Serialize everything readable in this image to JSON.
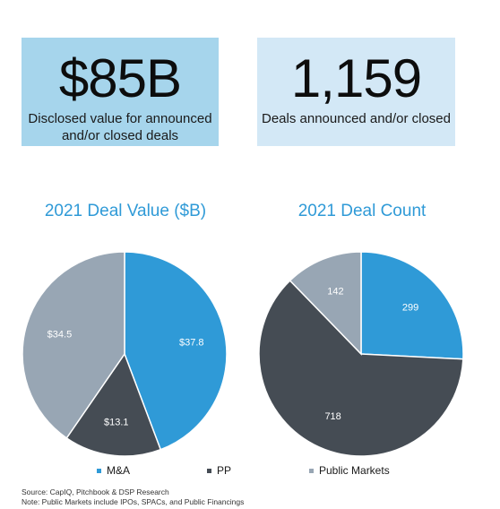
{
  "colors": {
    "ma": "#2f9ad7",
    "pp": "#454c54",
    "public": "#98a6b4",
    "kpi_left_bg": "#a6d5ec",
    "kpi_right_bg": "#d3e8f6",
    "title": "#2f9ad7"
  },
  "kpis": [
    {
      "value": "$85B",
      "description": "Disclosed value for announced and/or closed deals"
    },
    {
      "value": "1,159",
      "description": "Deals announced and/or closed"
    }
  ],
  "chart_data": [
    {
      "type": "pie",
      "title": "2021 Deal Value ($B)",
      "categories": [
        "M&A",
        "PP",
        "Public Markets"
      ],
      "values": [
        37.8,
        13.1,
        34.5
      ],
      "labels": [
        "$37.8",
        "$13.1",
        "$34.5"
      ]
    },
    {
      "type": "pie",
      "title": "2021 Deal Count",
      "categories": [
        "M&A",
        "PP",
        "Public Markets"
      ],
      "values": [
        299,
        718,
        142
      ],
      "labels": [
        "299",
        "718",
        "142"
      ]
    }
  ],
  "legend": {
    "items": [
      "M&A",
      "PP",
      "Public Markets"
    ],
    "placement": "bottom"
  },
  "footnotes": {
    "source": "Source: CapIQ, Pitchbook & DSP Research",
    "note": "Note: Public Markets include IPOs, SPACs, and Public Financings"
  }
}
